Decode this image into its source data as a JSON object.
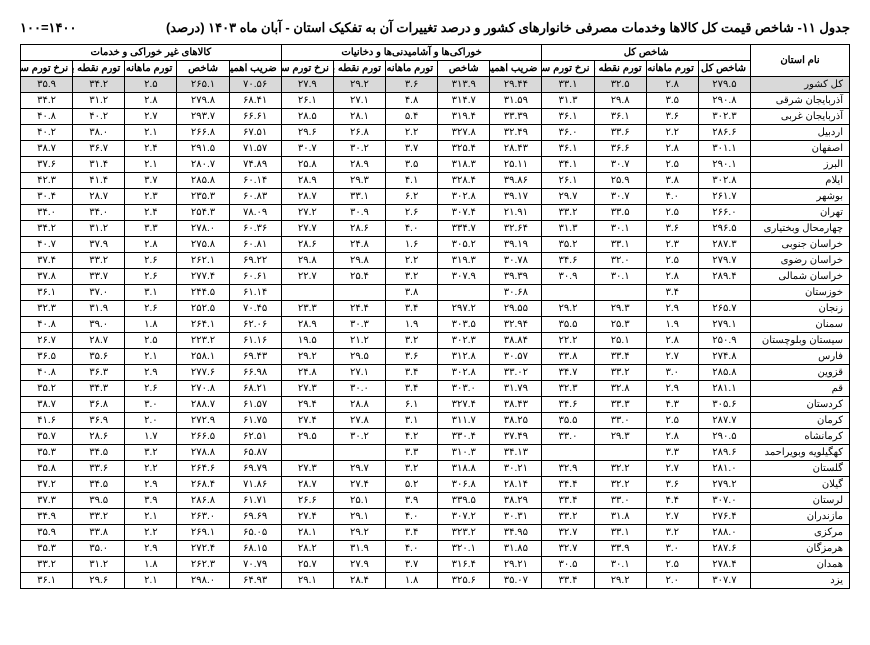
{
  "header": {
    "title": "جدول ۱۱- شاخص قیمت کل کالاها وخدمات مصرفی خانوارهای کشور و درصد تغییرات آن به تفکیک استان - آبان ماه ۱۴۰۳ (درصد)",
    "code": "۱۴۰۰=۱۰۰"
  },
  "groups": [
    {
      "label": "شاخص کل",
      "span": 5
    },
    {
      "label": "خوراکی‌ها و آشامیدنی‌ها و دخانیات",
      "span": 5
    },
    {
      "label": "کالاهای غیر خوراکی و خدمات",
      "span": 5
    }
  ],
  "subheaders": [
    "شاخص کل",
    "تورم ماهانه",
    "تورم نقطه به نقطه",
    "نرخ تورم سالانه",
    "ضریب اهمیت",
    "شاخص",
    "تورم ماهانه",
    "تورم نقطه به نقطه",
    "نرخ تورم سالانه",
    "ضریب اهمیت",
    "شاخص",
    "تورم ماهانه",
    "تورم نقطه به نقطه",
    "نرخ تورم سالانه"
  ],
  "provinces": [
    {
      "name": "کل کشور",
      "shaded": true,
      "v": [
        "۲۷۹.۵",
        "۲.۸",
        "۳۲.۵",
        "۳۳.۱",
        "۲۹.۴۴",
        "۳۱۳.۹",
        "۳.۶",
        "۲۹.۲",
        "۲۷.۹",
        "۷۰.۵۶",
        "۲۶۵.۱",
        "۲.۵",
        "۳۴.۲",
        "۳۵.۹"
      ]
    },
    {
      "name": "آذربایجان شرقی",
      "v": [
        "۲۹۰.۸",
        "۳.۵",
        "۲۹.۸",
        "۳۱.۳",
        "۳۱.۵۹",
        "۳۱۴.۷",
        "۴.۸",
        "۲۷.۱",
        "۲۶.۱",
        "۶۸.۴۱",
        "۲۷۹.۸",
        "۲.۸",
        "۳۱.۲",
        "۳۴.۲"
      ]
    },
    {
      "name": "آذربایجان غربی",
      "v": [
        "۳۰۲.۳",
        "۳.۶",
        "۳۶.۱",
        "۳۶.۱",
        "۳۳.۳۹",
        "۳۱۹.۴",
        "۵.۴",
        "۲۸.۱",
        "۲۸.۵",
        "۶۶.۶۱",
        "۲۹۳.۷",
        "۲.۷",
        "۴۰.۲",
        "۴۰.۸"
      ]
    },
    {
      "name": "اردبیل",
      "v": [
        "۲۸۶.۶",
        "۲.۲",
        "۳۳.۶",
        "۳۶.۰",
        "۳۲.۴۹",
        "۳۲۷.۸",
        "۲.۲",
        "۲۶.۸",
        "۲۹.۶",
        "۶۷.۵۱",
        "۲۶۶.۸",
        "۲.۱",
        "۳۸.۰",
        "۴۰.۲"
      ]
    },
    {
      "name": "اصفهان",
      "v": [
        "۳۰۱.۱",
        "۲.۸",
        "۳۶.۶",
        "۳۶.۱",
        "۲۸.۴۳",
        "۳۲۵.۴",
        "۳.۷",
        "۳۰.۲",
        "۳۰.۷",
        "۷۱.۵۷",
        "۲۹۱.۵",
        "۲.۴",
        "۳۶.۷",
        "۳۸.۷"
      ]
    },
    {
      "name": "البرز",
      "v": [
        "۲۹۰.۱",
        "۲.۵",
        "۳۰.۷",
        "۳۴.۱",
        "۲۵.۱۱",
        "۳۱۸.۳",
        "۳.۵",
        "۲۸.۹",
        "۲۵.۸",
        "۷۴.۸۹",
        "۲۸۰.۷",
        "۲.۱",
        "۳۱.۴",
        "۳۷.۶"
      ]
    },
    {
      "name": "ایلام",
      "v": [
        "۳۰۲.۸",
        "۳.۸",
        "۲۵.۹",
        "۲۶.۱",
        "۳۹.۸۶",
        "۳۲۸.۴",
        "۴.۱",
        "۲۹.۳",
        "۲۸.۹",
        "۶۰.۱۴",
        "۲۸۵.۸",
        "۳.۷",
        "۴۱.۴",
        "۴۲.۳"
      ]
    },
    {
      "name": "بوشهر",
      "v": [
        "۲۶۱.۷",
        "۴.۰",
        "۳۰.۷",
        "۲۹.۷",
        "۳۹.۱۷",
        "۳۰۲.۸",
        "۶.۲",
        "۳۳.۱",
        "۲۸.۷",
        "۶۰.۸۳",
        "۲۳۵.۳",
        "۲.۳",
        "۲۸.۷",
        "۳۰.۴"
      ]
    },
    {
      "name": "تهران",
      "v": [
        "۲۶۶.۰",
        "۲.۵",
        "۳۳.۵",
        "۳۳.۲",
        "۲۱.۹۱",
        "۳۰۷.۴",
        "۲.۶",
        "۳۰.۹",
        "۲۷.۲",
        "۷۸.۰۹",
        "۲۵۴.۳",
        "۲.۴",
        "۳۴.۰",
        "۳۴.۰"
      ]
    },
    {
      "name": "چهارمحال وبختیاری",
      "v": [
        "۲۹۶.۵",
        "۳.۶",
        "۳۰.۱",
        "۳۱.۳",
        "۳۲.۶۴",
        "۳۳۴.۷",
        "۴.۰",
        "۲۸.۶",
        "۲۷.۷",
        "۶۰.۳۶",
        "۲۷۸.۰",
        "۳.۳",
        "۳۱.۲",
        "۳۴.۲"
      ]
    },
    {
      "name": "خراسان جنوبی",
      "v": [
        "۲۸۷.۳",
        "۲.۳",
        "۳۳.۱",
        "۳۵.۲",
        "۳۹.۱۹",
        "۳۰۵.۲",
        "۱.۶",
        "۲۴.۸",
        "۲۸.۶",
        "۶۰.۸۱",
        "۲۷۵.۸",
        "۲.۸",
        "۳۷.۹",
        "۴۰.۷"
      ]
    },
    {
      "name": "خراسان رضوی",
      "v": [
        "۲۷۹.۷",
        "۲.۵",
        "۳۲.۰",
        "۳۴.۶",
        "۳۰.۷۸",
        "۳۱۹.۳",
        "۲.۲",
        "۲۹.۸",
        "۲۹.۸",
        "۶۹.۲۲",
        "۲۶۲.۱",
        "۲.۶",
        "۳۳.۲",
        "۳۷.۴"
      ]
    },
    {
      "name": "خراسان شمالی",
      "v": [
        "۲۸۹.۴",
        "۲.۸",
        "۳۰.۱",
        "۳۰.۹",
        "۳۹.۳۹",
        "۳۰۷.۹",
        "۳.۲",
        "۲۵.۴",
        "۲۲.۷",
        "۶۰.۶۱",
        "۲۷۷.۴",
        "۲.۶",
        "۳۳.۷",
        "۳۷.۸"
      ]
    },
    {
      "name": "خوزستان",
      "v": [
        "",
        "۳.۴",
        "",
        "",
        "۳۰.۶۸",
        "",
        "۳.۸",
        "",
        "",
        "۶۱.۱۴",
        "۲۴۴.۵",
        "۳.۱",
        "۳۷.۰",
        "۳۶.۱"
      ]
    },
    {
      "name": "زنجان",
      "v": [
        "۲۶۵.۷",
        "۲.۹",
        "۲۹.۳",
        "۲۹.۲",
        "۲۹.۵۵",
        "۲۹۷.۲",
        "۳.۴",
        "۲۴.۴",
        "۲۳.۳",
        "۷۰.۴۵",
        "۲۵۲.۵",
        "۲.۶",
        "۳۱.۹",
        "۳۲.۳"
      ]
    },
    {
      "name": "سمنان",
      "v": [
        "۲۷۹.۱",
        "۱.۹",
        "۲۵.۳",
        "۳۵.۵",
        "۳۲.۹۴",
        "۳۰۳.۵",
        "۱.۹",
        "۳۰.۳",
        "۲۸.۹",
        "۶۲.۰۶",
        "۲۶۴.۱",
        "۱.۸",
        "۳۹.۰",
        "۴۰.۸"
      ]
    },
    {
      "name": "سیستان وبلوچستان",
      "v": [
        "۲۵۰.۹",
        "۲.۸",
        "۲۵.۱",
        "۲۲.۲",
        "۳۸.۸۴",
        "۳۰۲.۳",
        "۳.۲",
        "۲۱.۲",
        "۱۹.۵",
        "۶۱.۱۶",
        "۲۲۳.۲",
        "۲.۵",
        "۲۸.۷",
        "۲۶.۷"
      ]
    },
    {
      "name": "فارس",
      "v": [
        "۲۷۴.۸",
        "۲.۷",
        "۳۳.۴",
        "۳۳.۸",
        "۳۰.۵۷",
        "۳۱۲.۸",
        "۳.۶",
        "۲۹.۵",
        "۲۹.۲",
        "۶۹.۴۳",
        "۲۵۸.۱",
        "۲.۱",
        "۳۵.۶",
        "۳۶.۵"
      ]
    },
    {
      "name": "قزوین",
      "v": [
        "۲۸۵.۸",
        "۳.۰",
        "۳۳.۲",
        "۳۴.۷",
        "۳۳.۰۲",
        "۳۰۲.۸",
        "۳.۴",
        "۲۷.۱",
        "۲۴.۸",
        "۶۶.۹۸",
        "۲۷۷.۶",
        "۲.۹",
        "۳۶.۳",
        "۴۰.۸"
      ]
    },
    {
      "name": "قم",
      "v": [
        "۲۸۱.۱",
        "۲.۹",
        "۳۲.۸",
        "۳۲.۳",
        "۳۱.۷۹",
        "۳۰۳.۰",
        "۳.۴",
        "۳۰.۰",
        "۲۷.۳",
        "۶۸.۲۱",
        "۲۷۰.۸",
        "۲.۶",
        "۳۴.۳",
        "۳۵.۲"
      ]
    },
    {
      "name": "کردستان",
      "v": [
        "۳۰۵.۶",
        "۴.۳",
        "۳۳.۳",
        "۳۴.۶",
        "۳۸.۴۳",
        "۳۲۷.۴",
        "۶.۱",
        "۲۸.۸",
        "۲۹.۴",
        "۶۱.۵۷",
        "۲۸۸.۷",
        "۳.۰",
        "۳۶.۸",
        "۳۸.۷"
      ]
    },
    {
      "name": "کرمان",
      "v": [
        "۲۸۷.۷",
        "۲.۵",
        "۳۳.۰",
        "۳۵.۵",
        "۳۸.۲۵",
        "۳۱۱.۷",
        "۳.۱",
        "۲۷.۸",
        "۲۷.۴",
        "۶۱.۷۵",
        "۲۷۲.۹",
        "۲.۰",
        "۳۶.۹",
        "۴۱.۶"
      ]
    },
    {
      "name": "کرمانشاه",
      "v": [
        "۲۹۰.۵",
        "۲.۸",
        "۲۹.۳",
        "۳۳.۰",
        "۳۷.۴۹",
        "۳۳۰.۴",
        "۴.۲",
        "۳۰.۲",
        "۲۹.۵",
        "۶۲.۵۱",
        "۲۶۶.۵",
        "۱.۷",
        "۲۸.۶",
        "۳۵.۷"
      ]
    },
    {
      "name": "کهگیلویه وبویراحمد",
      "v": [
        "۲۸۹.۶",
        "۳.۳",
        "",
        "",
        "۳۴.۱۳",
        "۳۱۰.۳",
        "۳.۳",
        "",
        "",
        "۶۵.۸۷",
        "۲۷۸.۸",
        "۳.۲",
        "۳۴.۵",
        "۳۵.۳"
      ]
    },
    {
      "name": "گلستان",
      "v": [
        "۲۸۱.۰",
        "۲.۷",
        "۳۲.۲",
        "۳۲.۹",
        "۳۰.۲۱",
        "۳۱۸.۸",
        "۳.۲",
        "۲۹.۷",
        "۲۷.۳",
        "۶۹.۷۹",
        "۲۶۴.۶",
        "۲.۲",
        "۳۳.۶",
        "۳۵.۸"
      ]
    },
    {
      "name": "گیلان",
      "v": [
        "۲۷۹.۲",
        "۳.۶",
        "۳۲.۲",
        "۳۴.۴",
        "۲۸.۱۴",
        "۳۰۶.۸",
        "۵.۲",
        "۲۷.۴",
        "۲۸.۷",
        "۷۱.۸۶",
        "۲۶۸.۴",
        "۲.۹",
        "۳۴.۵",
        "۳۷.۲"
      ]
    },
    {
      "name": "لرستان",
      "v": [
        "۳۰۷.۰",
        "۴.۴",
        "۳۳.۰",
        "۳۳.۴",
        "۳۸.۲۹",
        "۳۳۹.۵",
        "۳.۹",
        "۲۵.۱",
        "۲۶.۶",
        "۶۱.۷۱",
        "۲۸۶.۸",
        "۳.۹",
        "۳۹.۵",
        "۳۷.۳"
      ]
    },
    {
      "name": "مازندران",
      "v": [
        "۲۷۶.۴",
        "۲.۷",
        "۳۱.۸",
        "۳۳.۲",
        "۳۰.۳۱",
        "۳۰۷.۲",
        "۴.۰",
        "۲۹.۱",
        "۲۷.۴",
        "۶۹.۶۹",
        "۲۶۳.۰",
        "۲.۱",
        "۳۳.۲",
        "۳۴.۹"
      ]
    },
    {
      "name": "مرکزی",
      "v": [
        "۲۸۸.۰",
        "۳.۲",
        "۳۳.۱",
        "۳۲.۷",
        "۳۴.۹۵",
        "۳۲۳.۲",
        "۳.۴",
        "۲۹.۲",
        "۲۸.۱",
        "۶۵.۰۵",
        "۲۶۹.۱",
        "۲.۲",
        "۳۳.۸",
        "۳۵.۹"
      ]
    },
    {
      "name": "هرمزگان",
      "v": [
        "۲۸۷.۶",
        "۳.۰",
        "۳۳.۹",
        "۳۲.۷",
        "۳۱.۸۵",
        "۳۲۰.۱",
        "۴.۰",
        "۳۱.۹",
        "۲۸.۲",
        "۶۸.۱۵",
        "۲۷۲.۴",
        "۲.۹",
        "۳۵.۰",
        "۳۵.۳"
      ]
    },
    {
      "name": "همدان",
      "v": [
        "۲۷۸.۴",
        "۲.۵",
        "۳۰.۱",
        "۳۰.۵",
        "۲۹.۲۱",
        "۳۱۶.۴",
        "۳.۷",
        "۲۷.۹",
        "۲۵.۷",
        "۷۰.۷۹",
        "۲۶۲.۳",
        "۱.۸",
        "۳۱.۲",
        "۳۳.۲"
      ]
    },
    {
      "name": "یزد",
      "v": [
        "۳۰۷.۷",
        "۲.۰",
        "۲۹.۲",
        "۳۳.۴",
        "۳۵.۰۷",
        "۳۲۵.۶",
        "۱.۸",
        "۲۸.۴",
        "۲۹.۱",
        "۶۴.۹۳",
        "۲۹۸.۰",
        "۲.۱",
        "۲۹.۶",
        "۳۶.۱"
      ]
    }
  ]
}
